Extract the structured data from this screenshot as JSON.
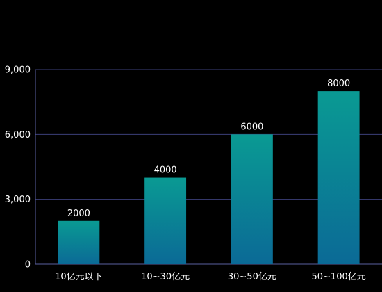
{
  "chart_data": {
    "type": "bar",
    "categories": [
      "10亿元以下",
      "10~30亿元",
      "30~50亿元",
      "50~100亿元"
    ],
    "values": [
      2000,
      4000,
      6000,
      8000
    ],
    "data_labels": [
      "2000",
      "4000",
      "6000",
      "8000"
    ],
    "title": "",
    "xlabel": "",
    "ylabel": "",
    "ylim": [
      0,
      9000
    ],
    "yticks": [
      0,
      3000,
      6000,
      9000
    ],
    "ytick_labels": [
      "0",
      "3,000",
      "6,000",
      "9,000"
    ],
    "grid": true,
    "colors": {
      "background": "#000000",
      "bar_top": "#0a9a93",
      "bar_bottom": "#0b6a96",
      "grid": "#3b3f7a",
      "axis": "#5a5fa0",
      "text": "#ffffff"
    }
  }
}
